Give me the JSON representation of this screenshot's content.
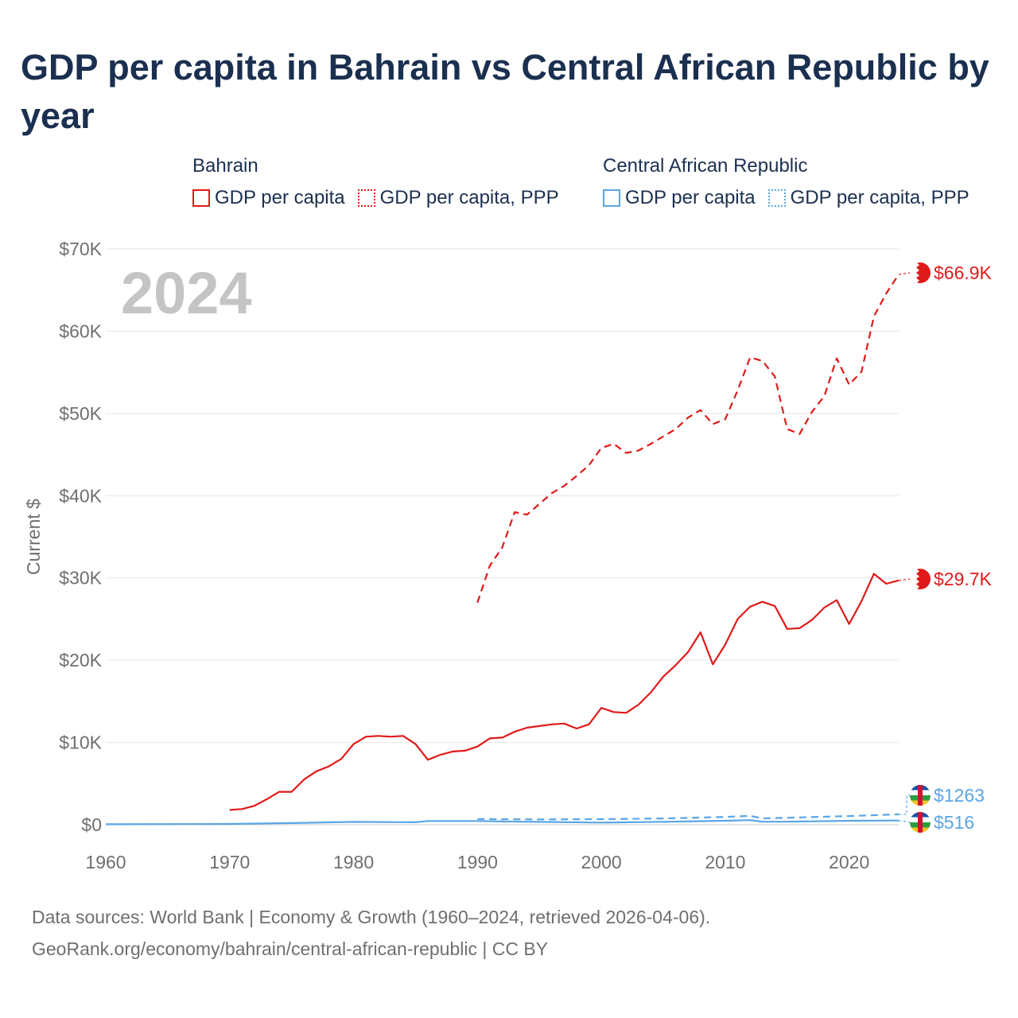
{
  "title": "GDP per capita in Bahrain vs Central African Republic by year",
  "legend": {
    "groups": [
      {
        "name": "Bahrain",
        "color": "#e01a1a",
        "items": [
          "GDP per capita",
          "GDP per capita, PPP"
        ]
      },
      {
        "name": "Central African Republic",
        "color": "#5aa5e6",
        "items": [
          "GDP per capita",
          "GDP per capita, PPP"
        ]
      }
    ]
  },
  "footer": {
    "line1": "Data sources: World Bank | Economy & Growth (1960–2024, retrieved 2026-04-06).",
    "line2": "GeoRank.org/economy/bahrain/central-african-republic | CC BY"
  },
  "chart_data": {
    "type": "line",
    "title": "GDP per capita in Bahrain vs Central African Republic by year",
    "year_label": "2024",
    "ylabel": "Current $",
    "xlabel": "",
    "xlim": [
      1960,
      2024
    ],
    "ylim": [
      0,
      70000
    ],
    "x_ticks": [
      1960,
      1970,
      1980,
      1990,
      2000,
      2010,
      2020
    ],
    "y_ticks": [
      0,
      10000,
      20000,
      30000,
      40000,
      50000,
      60000,
      70000
    ],
    "y_tick_labels": [
      "$0",
      "$10K",
      "$20K",
      "$30K",
      "$40K",
      "$50K",
      "$60K",
      "$70K"
    ],
    "grid": true,
    "series": [
      {
        "name": "Bahrain GDP per capita",
        "color": "#e01a1a",
        "dash": false,
        "end_label": "$29.7K",
        "x": [
          1970,
          1971,
          1972,
          1973,
          1974,
          1975,
          1976,
          1977,
          1978,
          1979,
          1980,
          1981,
          1982,
          1983,
          1984,
          1985,
          1986,
          1987,
          1988,
          1989,
          1990,
          1991,
          1992,
          1993,
          1994,
          1995,
          1996,
          1997,
          1998,
          1999,
          2000,
          2001,
          2002,
          2003,
          2004,
          2005,
          2006,
          2007,
          2008,
          2009,
          2010,
          2011,
          2012,
          2013,
          2014,
          2015,
          2016,
          2017,
          2018,
          2019,
          2020,
          2021,
          2022,
          2023,
          2024
        ],
        "values": [
          1800,
          1900,
          2300,
          3100,
          4000,
          4000,
          5500,
          6500,
          7100,
          8000,
          9800,
          10700,
          10800,
          10700,
          10800,
          9800,
          7900,
          8500,
          8900,
          9000,
          9500,
          10500,
          10600,
          11300,
          11800,
          12000,
          12200,
          12300,
          11700,
          12200,
          14200,
          13700,
          13600,
          14600,
          16100,
          18000,
          19400,
          21000,
          23400,
          19500,
          21900,
          25000,
          26500,
          27100,
          26600,
          23800,
          23900,
          24900,
          26400,
          27300,
          24400,
          27200,
          30500,
          29300,
          29700
        ]
      },
      {
        "name": "Bahrain GDP per capita, PPP",
        "color": "#e01a1a",
        "dash": true,
        "end_label": "$66.9K",
        "x": [
          1990,
          1991,
          1992,
          1993,
          1994,
          1995,
          1996,
          1997,
          1998,
          1999,
          2000,
          2001,
          2002,
          2003,
          2004,
          2005,
          2006,
          2007,
          2008,
          2009,
          2010,
          2011,
          2012,
          2013,
          2014,
          2015,
          2016,
          2017,
          2018,
          2019,
          2020,
          2021,
          2022,
          2023,
          2024
        ],
        "values": [
          27000,
          31500,
          33700,
          38000,
          37700,
          39000,
          40300,
          41200,
          42400,
          43700,
          45800,
          46300,
          45200,
          45500,
          46300,
          47200,
          48100,
          49500,
          50400,
          48700,
          49300,
          52800,
          56800,
          56400,
          54500,
          48100,
          47500,
          50200,
          52100,
          56700,
          53500,
          55100,
          61800,
          64600,
          66900
        ]
      },
      {
        "name": "Central African Republic GDP per capita",
        "color": "#5aa5e6",
        "dash": false,
        "end_label": "$516",
        "x": [
          1960,
          1965,
          1970,
          1975,
          1980,
          1985,
          1986,
          1990,
          1992,
          1995,
          2000,
          2005,
          2010,
          2012,
          2013,
          2015,
          2020,
          2024
        ],
        "values": [
          60,
          80,
          100,
          200,
          350,
          300,
          450,
          450,
          400,
          350,
          260,
          360,
          480,
          560,
          370,
          370,
          480,
          516
        ]
      },
      {
        "name": "Central African Republic GDP per capita, PPP",
        "color": "#5aa5e6",
        "dash": true,
        "end_label": "$1263",
        "x": [
          1990,
          1995,
          2000,
          2005,
          2010,
          2012,
          2013,
          2015,
          2020,
          2024
        ],
        "values": [
          700,
          650,
          680,
          760,
          950,
          1080,
          760,
          850,
          1050,
          1263
        ]
      }
    ]
  }
}
